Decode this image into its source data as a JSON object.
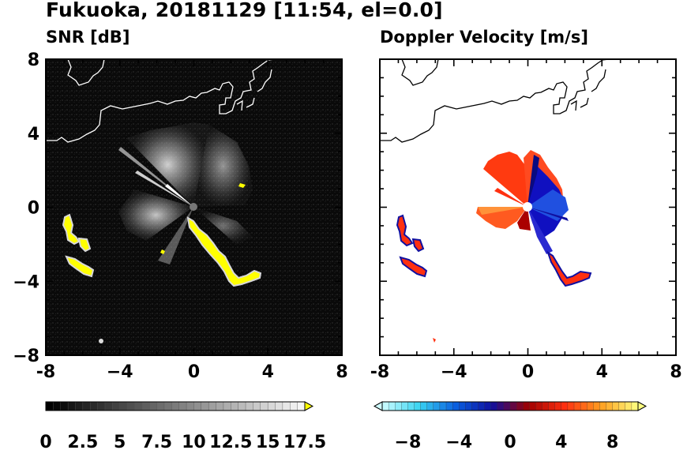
{
  "title": "Fukuoka, 20181129 [11:54, el=0.0]",
  "panels": [
    {
      "id": "snr",
      "subtitle": "SNR [dB]"
    },
    {
      "id": "doppler",
      "subtitle": "Doppler Velocity [m/s]"
    }
  ],
  "chart_data": [
    {
      "type": "heatmap",
      "title": "SNR [dB]",
      "xlim": [
        -8,
        8
      ],
      "ylim": [
        -8,
        8
      ],
      "xticks": [
        "-8",
        "−4",
        "0",
        "4",
        "8"
      ],
      "yticks": [
        "8",
        "4",
        "0",
        "−4",
        "−8"
      ],
      "colorbar": {
        "range": [
          0,
          17.5
        ],
        "labels": [
          "0",
          "2.5",
          "5",
          "7.5",
          "10",
          "12.5",
          "15",
          "17.5"
        ],
        "colors": [
          "#000000",
          "#ffffff",
          "#ffff00"
        ]
      },
      "echo_regions": [
        {
          "name": "west band",
          "x": [
            -7.2,
            -5.5
          ],
          "y": [
            -4.0,
            -0.4
          ]
        },
        {
          "name": "south-east band",
          "x": [
            -0.3,
            3.8
          ],
          "y": [
            -4.4,
            -0.6
          ]
        }
      ],
      "background": "#000000"
    },
    {
      "type": "heatmap",
      "title": "Doppler Velocity [m/s]",
      "xlim": [
        -8,
        8
      ],
      "ylim": [
        -8,
        8
      ],
      "xticks": [
        "-8",
        "−4",
        "0",
        "4",
        "8"
      ],
      "yticks": [],
      "colorbar": {
        "range": [
          -10,
          10
        ],
        "labels": [
          "−8",
          "−4",
          "0",
          "4",
          "8"
        ],
        "colors": [
          "#cffcff",
          "#3ad5f2",
          "#0a60e0",
          "#1010a0",
          "#a00000",
          "#ff3010",
          "#ffa020",
          "#ffff80"
        ]
      },
      "background": "#ffffff"
    }
  ]
}
